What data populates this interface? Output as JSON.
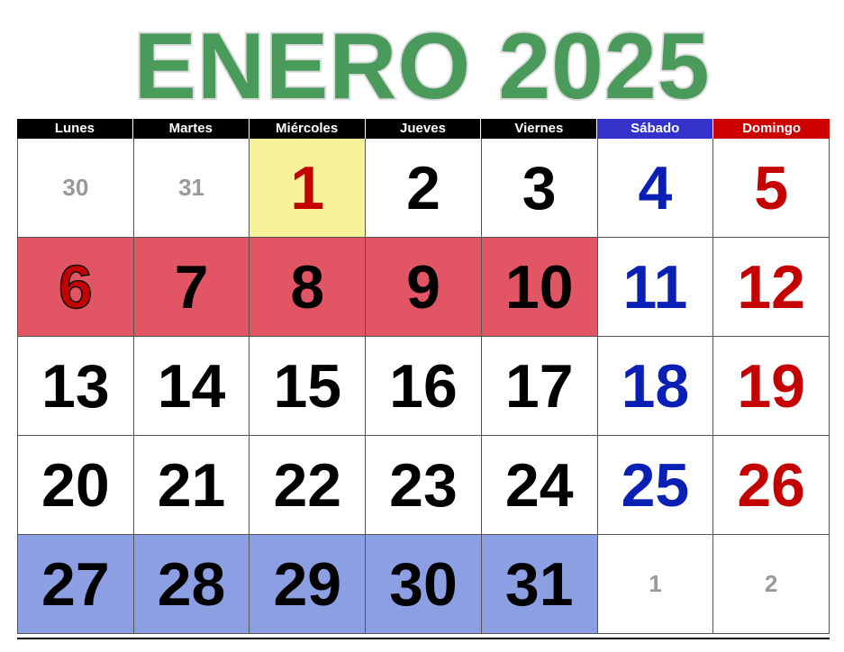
{
  "title": "ENERO 2025",
  "colors": {
    "title": "#4a9a5c",
    "header_default": "#000000",
    "header_saturday": "#3333cc",
    "header_sunday": "#cc0000",
    "saturday_text": "#0a1fb3",
    "sunday_text": "#c40000",
    "today_highlight": "#f7f29a",
    "week_red": "#e25565",
    "week_blue": "#8d9fe3",
    "other_month_text": "#999999"
  },
  "weekdays": [
    "Lunes",
    "Martes",
    "Miércoles",
    "Jueves",
    "Viernes",
    "Sábado",
    "Domingo"
  ],
  "weeks": [
    [
      "30",
      "31",
      "1",
      "2",
      "3",
      "4",
      "5"
    ],
    [
      "6",
      "7",
      "8",
      "9",
      "10",
      "11",
      "12"
    ],
    [
      "13",
      "14",
      "15",
      "16",
      "17",
      "18",
      "19"
    ],
    [
      "20",
      "21",
      "22",
      "23",
      "24",
      "25",
      "26"
    ],
    [
      "27",
      "28",
      "29",
      "30",
      "31",
      "1",
      "2"
    ]
  ]
}
